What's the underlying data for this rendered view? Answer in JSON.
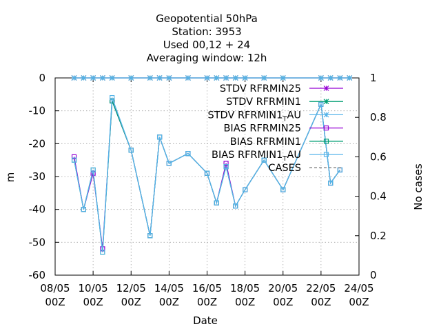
{
  "chart_data": {
    "type": "line",
    "title": [
      "Geopotential 50hPa",
      "Station:      3953",
      "Used  00,12  + 24",
      "Averaging window: 12h"
    ],
    "xlabel": "Date",
    "ylabel": "m",
    "y2label": "No cases",
    "xlim": [
      0,
      16
    ],
    "ylim": [
      -60,
      0
    ],
    "y2lim": [
      0,
      1
    ],
    "grid": true,
    "legend_position": "top-right",
    "x_ticks": [
      {
        "x": 0,
        "l1": "08/05",
        "l2": "00Z"
      },
      {
        "x": 2,
        "l1": "10/05",
        "l2": "00Z"
      },
      {
        "x": 4,
        "l1": "12/05",
        "l2": "00Z"
      },
      {
        "x": 6,
        "l1": "14/05",
        "l2": "00Z"
      },
      {
        "x": 8,
        "l1": "16/05",
        "l2": "00Z"
      },
      {
        "x": 10,
        "l1": "18/05",
        "l2": "00Z"
      },
      {
        "x": 12,
        "l1": "20/05",
        "l2": "00Z"
      },
      {
        "x": 14,
        "l1": "22/05",
        "l2": "00Z"
      },
      {
        "x": 16,
        "l1": "24/05",
        "l2": "00Z"
      }
    ],
    "y_ticks": [
      0,
      -10,
      -20,
      -30,
      -40,
      -50,
      -60
    ],
    "y2_ticks": [
      {
        "v": 1,
        "label": "1"
      },
      {
        "v": 0.8,
        "label": "0.8"
      },
      {
        "v": 0.6,
        "label": "0.6"
      },
      {
        "v": 0.4,
        "label": "0.4"
      },
      {
        "v": 0.2,
        "label": "0.2"
      },
      {
        "v": 0,
        "label": "0"
      }
    ],
    "series": [
      {
        "name": "STDV RFRMIN25",
        "axis": "y",
        "color": "#9400d3",
        "marker": "star",
        "x": [
          1,
          1.5,
          2,
          2.5,
          3,
          4,
          5,
          5.5,
          6,
          7,
          8,
          8.5,
          9,
          9.5,
          10,
          11,
          12,
          14,
          14.5,
          15,
          15.5
        ],
        "y": [
          0,
          0,
          0,
          0,
          0,
          0,
          0,
          0,
          0,
          0,
          0,
          0,
          0,
          0,
          0,
          0,
          0,
          0,
          0,
          0,
          0
        ]
      },
      {
        "name": "STDV RFRMIN1",
        "axis": "y",
        "color": "#009e73",
        "marker": "star",
        "x": [
          1,
          1.5,
          2,
          2.5,
          3,
          4,
          5,
          5.5,
          6,
          7,
          8,
          8.5,
          9,
          9.5,
          10,
          11,
          12,
          14,
          14.5,
          15,
          15.5
        ],
        "y": [
          0,
          0,
          0,
          0,
          0,
          0,
          0,
          0,
          0,
          0,
          0,
          0,
          0,
          0,
          0,
          0,
          0,
          0,
          0,
          0,
          0
        ]
      },
      {
        "name": "STDV RFRMIN1_TAU",
        "axis": "y",
        "color": "#56b4e9",
        "marker": "star",
        "x": [
          1,
          1.5,
          2,
          2.5,
          3,
          4,
          5,
          5.5,
          6,
          7,
          8,
          8.5,
          9,
          9.5,
          10,
          11,
          12,
          14,
          14.5,
          15,
          15.5
        ],
        "y": [
          0,
          0,
          0,
          0,
          0,
          0,
          0,
          0,
          0,
          0,
          0,
          0,
          0,
          0,
          0,
          0,
          0,
          0,
          0,
          0,
          0
        ]
      },
      {
        "name": "BIAS RFRMIN25",
        "axis": "y",
        "color": "#9400d3",
        "marker": "square",
        "x": [
          1,
          1.5,
          2,
          2.5,
          3,
          4,
          5,
          5.5,
          6,
          7,
          8,
          8.5,
          9,
          9.5,
          10,
          11,
          12,
          14,
          14.5,
          15
        ],
        "y": [
          -24,
          -40,
          -29,
          -52,
          -7,
          -22,
          -48,
          -18,
          -26,
          -23,
          -29,
          -38,
          -26,
          -39,
          -34,
          -25,
          -34,
          -8,
          -32,
          -28
        ]
      },
      {
        "name": "BIAS RFRMIN1",
        "axis": "y",
        "color": "#009e73",
        "marker": "square",
        "x": [
          1,
          1.5,
          2,
          2.5,
          3,
          4,
          5,
          5.5,
          6,
          7,
          8,
          8.5,
          9,
          9.5,
          10,
          11,
          12,
          14,
          14.5,
          15
        ],
        "y": [
          -25,
          -40,
          -28,
          -53,
          -7,
          -22,
          -48,
          -18,
          -26,
          -23,
          -29,
          -38,
          -27,
          -39,
          -34,
          -25,
          -34,
          -8,
          -32,
          -28
        ]
      },
      {
        "name": "BIAS RFRMIN1_TAU",
        "axis": "y",
        "color": "#56b4e9",
        "marker": "square",
        "x": [
          1,
          1.5,
          2,
          2.5,
          3,
          4,
          5,
          5.5,
          6,
          7,
          8,
          8.5,
          9,
          9.5,
          10,
          11,
          12,
          14,
          14.5,
          15
        ],
        "y": [
          -25,
          -40,
          -28,
          -53,
          -6,
          -22,
          -48,
          -18,
          -26,
          -23,
          -29,
          -38,
          -27,
          -39,
          -34,
          -25,
          -34,
          -8,
          -32,
          -28
        ]
      },
      {
        "name": "CASES",
        "axis": "y2",
        "color": "#808080",
        "dashed": true,
        "marker": "none",
        "x": [],
        "y": []
      }
    ]
  }
}
